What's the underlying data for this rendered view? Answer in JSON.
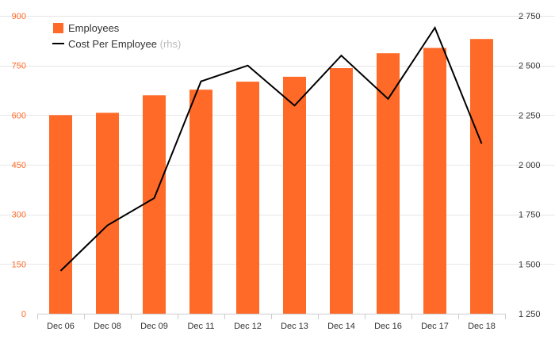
{
  "colors": {
    "bar": "#ff6a28",
    "line": "#000000",
    "left_axis_text": "#ff6a28",
    "right_axis_text": "#333333",
    "background": "#ffffff"
  },
  "legend": {
    "placement": "top-left",
    "bar_label": "Employees",
    "line_label": "Cost Per Employee",
    "line_suffix": "(rhs)"
  },
  "chart_data": {
    "type": "bar",
    "categories": [
      "Dec 06",
      "Dec 08",
      "Dec 09",
      "Dec 11",
      "Dec 12",
      "Dec 13",
      "Dec 14",
      "Dec 16",
      "Dec 17",
      "Dec 18"
    ],
    "series": [
      {
        "name": "Employees",
        "type": "bar",
        "axis": "left",
        "values": [
          600,
          607,
          660,
          677,
          701,
          716,
          742,
          787,
          803,
          830
        ]
      },
      {
        "name": "Cost Per Employee",
        "type": "line",
        "axis": "right",
        "values": [
          1466,
          1695,
          1832,
          2420,
          2500,
          2298,
          2550,
          2332,
          2690,
          2106
        ]
      }
    ],
    "y_left": {
      "min": 0,
      "max": 900,
      "ticks": [
        0,
        150,
        300,
        450,
        600,
        750,
        900
      ],
      "tick_labels": [
        "0",
        "150",
        "300",
        "450",
        "600",
        "750",
        "900"
      ]
    },
    "y_right": {
      "min": 1250,
      "max": 2750,
      "ticks": [
        1250,
        1500,
        1750,
        2000,
        2250,
        2500,
        2750
      ],
      "tick_labels": [
        "1 250",
        "1 500",
        "1 750",
        "2 000",
        "2 250",
        "2 500",
        "2 750"
      ]
    },
    "grid": true
  }
}
